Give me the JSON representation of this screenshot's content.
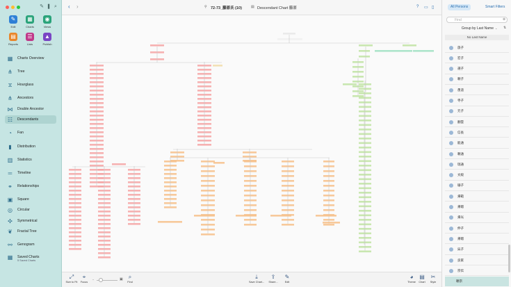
{
  "window": {
    "title": "72-73_藤原氏 (10)",
    "subtitle": "Descendant Chart 藤原"
  },
  "colors": {
    "sidebar_bg": "#c6e5e3",
    "accent": "#2a6fb0",
    "red_branch": "#f4a3a3",
    "orange_branch": "#f6c08a",
    "green_branch": "#bfe3a2",
    "teal_branch": "#9fe0c2"
  },
  "sidebar": {
    "top_buttons": [
      {
        "label": "Edit",
        "icon": "pencil-icon",
        "color": "#2e80d6"
      },
      {
        "label": "Charts",
        "icon": "charts-icon",
        "color": "#2aa37a"
      },
      {
        "label": "Views",
        "icon": "eye-icon",
        "color": "#2aa37a"
      },
      {
        "label": "Reports",
        "icon": "reports-icon",
        "color": "#e8862a"
      },
      {
        "label": "Lists",
        "icon": "lists-icon",
        "color": "#c0398a"
      },
      {
        "label": "Publish",
        "icon": "publish-icon",
        "color": "#7a45c4"
      }
    ],
    "items": [
      {
        "label": "Charts Overview",
        "icon": "grid-icon"
      },
      {
        "label": "Tree",
        "icon": "tree-icon"
      },
      {
        "label": "Hourglass",
        "icon": "hourglass-icon"
      },
      {
        "label": "Ancestors",
        "icon": "ancestors-icon"
      },
      {
        "label": "Double Ancestor",
        "icon": "double-ancestor-icon"
      },
      {
        "label": "Descendants",
        "icon": "descendants-icon"
      },
      {
        "label": "Fan",
        "icon": "fan-icon"
      },
      {
        "label": "Distribution",
        "icon": "distribution-icon"
      },
      {
        "label": "Statistics",
        "icon": "statistics-icon"
      },
      {
        "label": "Timeline",
        "icon": "timeline-icon"
      },
      {
        "label": "Relationships",
        "icon": "relationships-icon"
      },
      {
        "label": "Square",
        "icon": "square-icon"
      },
      {
        "label": "Circular",
        "icon": "circular-icon"
      },
      {
        "label": "Symmetrical",
        "icon": "symmetrical-icon"
      },
      {
        "label": "Fractal Tree",
        "icon": "fractal-tree-icon"
      },
      {
        "label": "Genogram",
        "icon": "genogram-icon"
      },
      {
        "label": "Saved Charts",
        "icon": "saved-charts-icon"
      }
    ],
    "saved_sub": "5 Saved Charts"
  },
  "bottom": {
    "left": [
      {
        "label": "Size to Fit"
      },
      {
        "label": "Focus"
      },
      {
        "label": "Find"
      }
    ],
    "mid": [
      {
        "label": "Save Chart..."
      },
      {
        "label": "Share..."
      },
      {
        "label": "Edit"
      }
    ],
    "right": [
      {
        "label": "Theme"
      },
      {
        "label": "Chart"
      },
      {
        "label": "Style"
      }
    ]
  },
  "rpanel": {
    "tab_all": "All Persons",
    "tab_smart": "Smart Filters",
    "find_placeholder": "Find",
    "group_label": "Group by Last Name",
    "no_last_name": "No Last Name",
    "persons": [
      "旅子",
      "宏子",
      "選子",
      "頼子",
      "愚道",
      "寺子",
      "元子",
      "翻雲",
      "信長",
      "能通",
      "頼通",
      "瑞通",
      "文殿",
      "珊子",
      "帰範",
      "帰聰",
      "帰光",
      "伸子",
      "帰聰",
      "呉子",
      "良家",
      "宗伝"
    ],
    "selected": "頼宗"
  }
}
